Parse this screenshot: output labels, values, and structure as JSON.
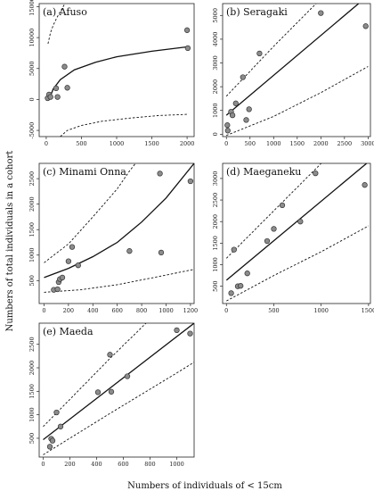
{
  "ylabel": "Numbers of total individuals in a cohort",
  "xlabel": "Numbers of individuals of < 15cm",
  "chart_data": [
    {
      "type": "scatter",
      "title": "(a) Afuso",
      "xlim": [
        -100,
        2100
      ],
      "ylim": [
        -6000,
        15500
      ],
      "xticks": [
        0,
        500,
        1000,
        1500,
        2000
      ],
      "yticks": [
        -5000,
        0,
        5000,
        10000,
        15000
      ],
      "points": [
        [
          20,
          200
        ],
        [
          40,
          800
        ],
        [
          60,
          400
        ],
        [
          140,
          1800
        ],
        [
          160,
          400
        ],
        [
          260,
          5300
        ],
        [
          300,
          1900
        ],
        [
          2000,
          11200
        ],
        [
          2010,
          8300
        ]
      ],
      "fit_model": "log",
      "fit": [
        [
          40,
          0
        ],
        [
          100,
          1700
        ],
        [
          200,
          3200
        ],
        [
          400,
          4800
        ],
        [
          700,
          6000
        ],
        [
          1000,
          6900
        ],
        [
          1500,
          7800
        ],
        [
          2000,
          8500
        ]
      ],
      "ci_upper": [
        [
          25,
          9000
        ],
        [
          60,
          10800
        ],
        [
          100,
          12000
        ],
        [
          150,
          13200
        ],
        [
          200,
          14200
        ],
        [
          260,
          15400
        ]
      ],
      "ci_lower": [
        [
          200,
          -6000
        ],
        [
          300,
          -5000
        ],
        [
          500,
          -4200
        ],
        [
          800,
          -3500
        ],
        [
          1200,
          -3000
        ],
        [
          1600,
          -2600
        ],
        [
          2000,
          -2400
        ]
      ]
    },
    {
      "type": "scatter",
      "title": "(b) Seragaki",
      "xlim": [
        -80,
        3050
      ],
      "ylim": [
        -100,
        5500
      ],
      "xticks": [
        0,
        500,
        1000,
        1500,
        2000,
        2500,
        3000
      ],
      "yticks": [
        0,
        1000,
        2000,
        3000,
        4000,
        5000
      ],
      "points": [
        [
          20,
          380
        ],
        [
          30,
          150
        ],
        [
          100,
          950
        ],
        [
          130,
          800
        ],
        [
          200,
          1300
        ],
        [
          350,
          2400
        ],
        [
          420,
          600
        ],
        [
          480,
          1050
        ],
        [
          700,
          3400
        ],
        [
          2000,
          5100
        ],
        [
          2950,
          4550
        ]
      ],
      "fit_model": "linear",
      "fit": [
        [
          0,
          800
        ],
        [
          2800,
          5500
        ]
      ],
      "ci_upper": [
        [
          0,
          1600
        ],
        [
          1000,
          3700
        ],
        [
          1900,
          5500
        ]
      ],
      "ci_lower": [
        [
          0,
          -50
        ],
        [
          1000,
          750
        ],
        [
          2000,
          1750
        ],
        [
          3000,
          2850
        ]
      ]
    },
    {
      "type": "scatter",
      "title": "(c) Minami Onna",
      "xlim": [
        -40,
        1230
      ],
      "ylim": [
        50,
        2800
      ],
      "xticks": [
        0,
        200,
        400,
        600,
        800,
        1000,
        1200
      ],
      "yticks": [
        500,
        1000,
        1500,
        2000,
        2500
      ],
      "points": [
        [
          80,
          320
        ],
        [
          110,
          330
        ],
        [
          120,
          470
        ],
        [
          130,
          530
        ],
        [
          150,
          560
        ],
        [
          200,
          880
        ],
        [
          230,
          1160
        ],
        [
          280,
          800
        ],
        [
          700,
          1080
        ],
        [
          950,
          2600
        ],
        [
          960,
          1050
        ],
        [
          1200,
          2450
        ]
      ],
      "fit_model": "exponential",
      "fit": [
        [
          0,
          560
        ],
        [
          200,
          740
        ],
        [
          400,
          970
        ],
        [
          600,
          1250
        ],
        [
          800,
          1650
        ],
        [
          1000,
          2120
        ],
        [
          1230,
          2800
        ]
      ],
      "ci_upper": [
        [
          0,
          850
        ],
        [
          200,
          1220
        ],
        [
          400,
          1750
        ],
        [
          600,
          2300
        ],
        [
          700,
          2650
        ],
        [
          750,
          2800
        ]
      ],
      "ci_lower": [
        [
          0,
          270
        ],
        [
          300,
          320
        ],
        [
          600,
          420
        ],
        [
          900,
          560
        ],
        [
          1230,
          720
        ]
      ]
    },
    {
      "type": "scatter",
      "title": "(d) Maeganeku",
      "xlim": [
        -40,
        1520
      ],
      "ylim": [
        100,
        3350
      ],
      "xticks": [
        0,
        500,
        1000,
        1500
      ],
      "yticks": [
        500,
        1000,
        1500,
        2000,
        2500,
        3000
      ],
      "points": [
        [
          50,
          340
        ],
        [
          80,
          1350
        ],
        [
          120,
          500
        ],
        [
          150,
          510
        ],
        [
          220,
          800
        ],
        [
          430,
          1550
        ],
        [
          500,
          1830
        ],
        [
          590,
          2380
        ],
        [
          780,
          2000
        ],
        [
          940,
          3120
        ],
        [
          1460,
          2850
        ]
      ],
      "fit_model": "linear",
      "fit": [
        [
          0,
          640
        ],
        [
          1480,
          3350
        ]
      ],
      "ci_upper": [
        [
          0,
          1150
        ],
        [
          500,
          2250
        ],
        [
          1000,
          3350
        ]
      ],
      "ci_lower": [
        [
          0,
          160
        ],
        [
          500,
          750
        ],
        [
          1000,
          1300
        ],
        [
          1500,
          1900
        ]
      ]
    },
    {
      "type": "scatter",
      "title": "(e) Maeda",
      "xlim": [
        -30,
        1130
      ],
      "ylim": [
        100,
        2950
      ],
      "xticks": [
        0,
        200,
        400,
        600,
        800,
        1000
      ],
      "yticks": [
        500,
        1000,
        1500,
        2000,
        2500
      ],
      "points": [
        [
          50,
          320
        ],
        [
          60,
          490
        ],
        [
          70,
          450
        ],
        [
          100,
          1050
        ],
        [
          130,
          750
        ],
        [
          410,
          1480
        ],
        [
          500,
          2280
        ],
        [
          510,
          1490
        ],
        [
          630,
          1820
        ],
        [
          1000,
          2800
        ],
        [
          1100,
          2730
        ]
      ],
      "fit_model": "linear",
      "fit": [
        [
          0,
          470
        ],
        [
          1130,
          2950
        ]
      ],
      "ci_upper": [
        [
          0,
          750
        ],
        [
          500,
          2200
        ],
        [
          770,
          2950
        ]
      ],
      "ci_lower": [
        [
          0,
          150
        ],
        [
          500,
          1030
        ],
        [
          1000,
          1890
        ],
        [
          1130,
          2120
        ]
      ]
    }
  ]
}
